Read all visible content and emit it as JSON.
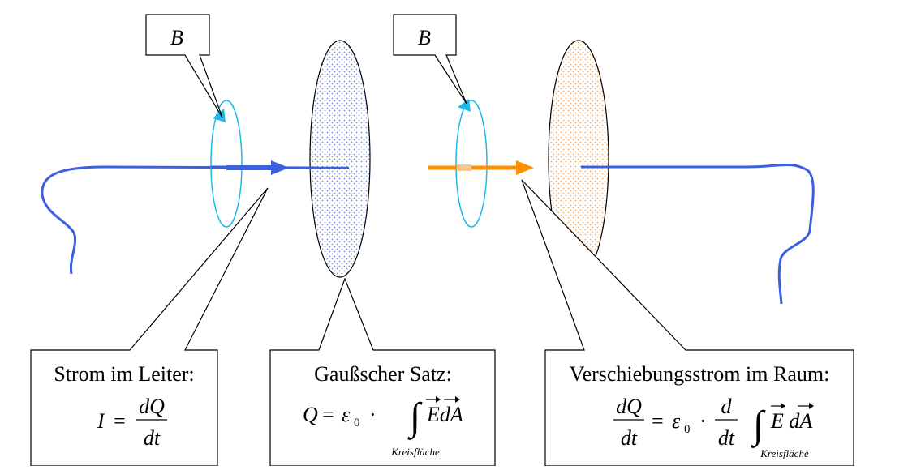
{
  "labels": {
    "b_left": "B",
    "b_right": "B"
  },
  "callouts": {
    "conductor": {
      "title": "Strom im Leiter:",
      "formula": {
        "lhs": "I",
        "eq": "=",
        "num": "dQ",
        "den": "dt"
      }
    },
    "gauss": {
      "title": "Gaußscher Satz:",
      "formula": {
        "lhs": "Q",
        "eq": "=",
        "eps": "ε",
        "eps_sub": "0",
        "dot": "·",
        "integral": "∫",
        "integrand": "EdA",
        "subscript": "Kreisfläche"
      }
    },
    "displacement": {
      "title": "Verschiebungsstrom im Raum:",
      "formula": {
        "num": "dQ",
        "den": "dt",
        "eq": "=",
        "eps": "ε",
        "eps_sub": "0",
        "dot": "·",
        "d_num": "d",
        "d_den": "dt",
        "integral": "∫",
        "integrand": "E dA",
        "subscript": "Kreisfläche"
      }
    }
  },
  "colors": {
    "wire": "#3a5fe0",
    "field_loop": "#1fb8e8",
    "displacement_arrow": "#ff9000",
    "plate_left_dots": "#7b8ee0",
    "plate_right_dots": "#f5b070"
  }
}
